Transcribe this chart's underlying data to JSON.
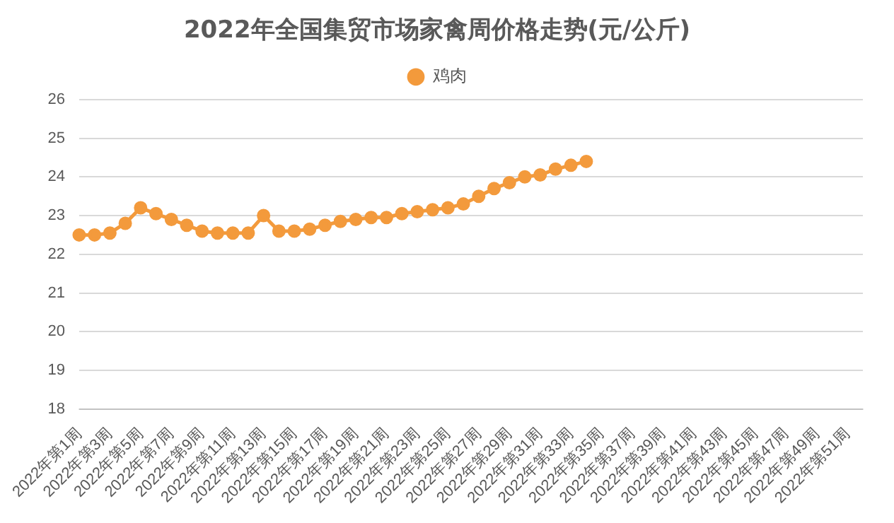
{
  "chart_data": {
    "type": "line",
    "title": "2022年全国集贸市场家禽周价格走势(元/公斤)",
    "categories": [
      "2022年第1周",
      null,
      "2022年第3周",
      null,
      "2022年第5周",
      null,
      "2022年第7周",
      null,
      "2022年第9周",
      null,
      "2022年第11周",
      null,
      "2022年第13周",
      null,
      "2022年第15周",
      null,
      "2022年第17周",
      null,
      "2022年第19周",
      null,
      "2022年第21周",
      null,
      "2022年第23周",
      null,
      "2022年第25周",
      null,
      "2022年第27周",
      null,
      "2022年第29周",
      null,
      "2022年第31周",
      null,
      "2022年第33周",
      null,
      "2022年第35周",
      null,
      "2022年第37周",
      null,
      "2022年第39周",
      null,
      "2022年第41周",
      null,
      "2022年第43周",
      null,
      "2022年第45周",
      null,
      "2022年第47周",
      null,
      "2022年第49周",
      null,
      "2022年第51周",
      null
    ],
    "series": [
      {
        "name": "鸡肉",
        "color": "#f39a3c",
        "values": [
          22.5,
          22.5,
          22.55,
          22.8,
          23.2,
          23.05,
          22.9,
          22.75,
          22.6,
          22.55,
          22.55,
          22.55,
          23.0,
          22.6,
          22.6,
          22.65,
          22.75,
          22.85,
          22.9,
          22.95,
          22.95,
          23.05,
          23.1,
          23.15,
          23.2,
          23.3,
          23.5,
          23.7,
          23.85,
          24.0,
          24.05,
          24.2,
          24.3,
          24.4,
          null,
          null,
          null,
          null,
          null,
          null,
          null,
          null,
          null,
          null,
          null,
          null,
          null,
          null,
          null,
          null,
          null,
          null
        ]
      }
    ],
    "ylim": [
      18,
      26
    ],
    "yticks": [
      18,
      19,
      20,
      21,
      22,
      23,
      24,
      25,
      26
    ],
    "grid": "y",
    "legend": "top",
    "marker": "circle",
    "line_style": "solid"
  }
}
